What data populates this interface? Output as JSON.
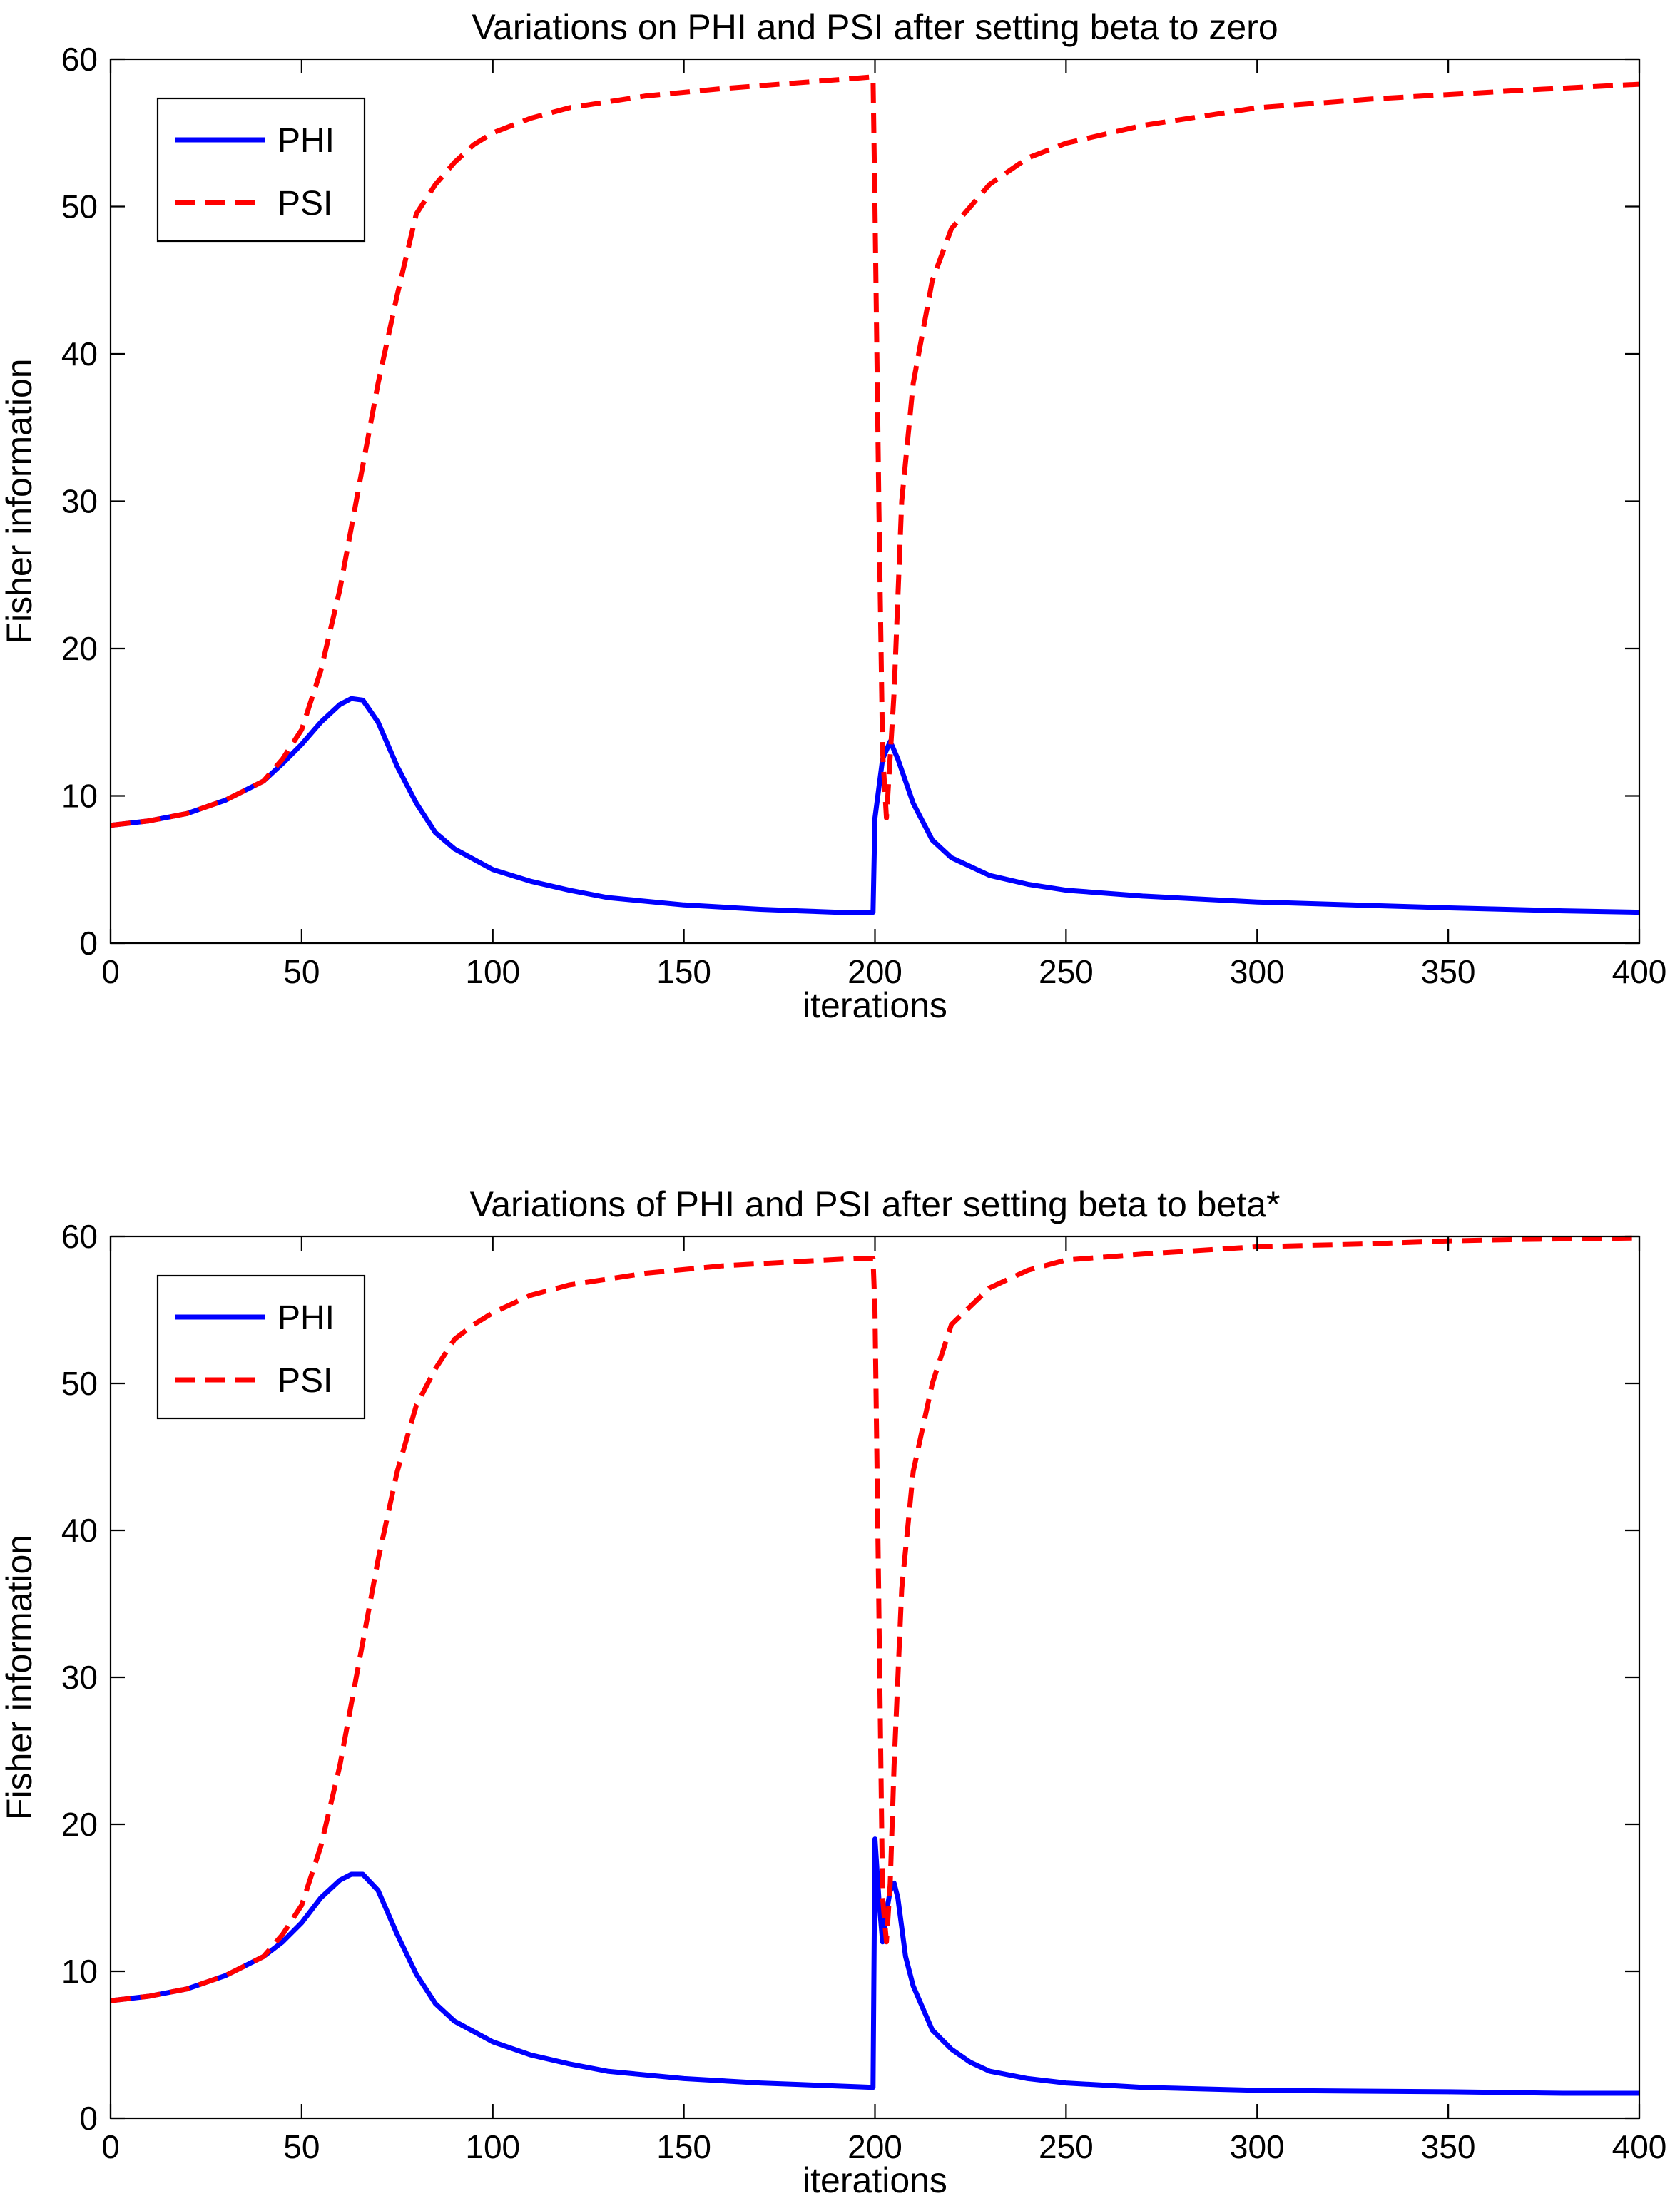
{
  "chart_data": [
    {
      "type": "line",
      "title": "Variations on PHI and PSI after setting beta to zero",
      "xlabel": "iterations",
      "ylabel": "Fisher information",
      "xlim": [
        0,
        400
      ],
      "ylim": [
        0,
        60
      ],
      "xticks": [
        0,
        50,
        100,
        150,
        200,
        250,
        300,
        350,
        400
      ],
      "yticks": [
        0,
        10,
        20,
        30,
        40,
        50,
        60
      ],
      "grid": false,
      "legend_position": "top-left",
      "series": [
        {
          "name": "PHI",
          "color": "#0000ff",
          "style": "solid",
          "x": [
            0,
            10,
            20,
            30,
            40,
            45,
            50,
            55,
            60,
            63,
            66,
            70,
            75,
            80,
            85,
            90,
            100,
            110,
            120,
            130,
            150,
            170,
            180,
            190,
            199.5,
            200,
            202,
            204,
            206,
            210,
            215,
            220,
            230,
            240,
            250,
            270,
            300,
            350,
            380,
            400
          ],
          "y": [
            8,
            8.3,
            8.8,
            9.7,
            11,
            12.2,
            13.5,
            15,
            16.2,
            16.6,
            16.5,
            15,
            12,
            9.5,
            7.5,
            6.4,
            5,
            4.2,
            3.6,
            3.1,
            2.6,
            2.3,
            2.2,
            2.1,
            2.1,
            8.5,
            12.5,
            13.7,
            12.5,
            9.5,
            7,
            5.8,
            4.6,
            4,
            3.6,
            3.2,
            2.8,
            2.4,
            2.2,
            2.1
          ]
        },
        {
          "name": "PSI",
          "color": "#ff0000",
          "style": "dashed",
          "x": [
            0,
            10,
            20,
            30,
            40,
            45,
            50,
            55,
            60,
            65,
            70,
            75,
            80,
            85,
            90,
            95,
            100,
            110,
            120,
            140,
            160,
            180,
            195,
            199.5,
            200,
            201,
            202,
            203,
            205,
            207,
            210,
            215,
            220,
            230,
            240,
            250,
            270,
            300,
            330,
            350,
            370,
            400
          ],
          "y": [
            8,
            8.3,
            8.8,
            9.7,
            11,
            12.5,
            14.5,
            18.5,
            24,
            31,
            38,
            44,
            49.5,
            51.5,
            53,
            54.2,
            55,
            56,
            56.7,
            57.5,
            58,
            58.4,
            58.7,
            58.8,
            50,
            30,
            13,
            8.5,
            17,
            30,
            38,
            45,
            48.5,
            51.5,
            53.3,
            54.3,
            55.5,
            56.7,
            57.3,
            57.6,
            57.9,
            58.3
          ]
        }
      ]
    },
    {
      "type": "line",
      "title": "Variations of PHI and PSI after setting beta to beta*",
      "xlabel": "iterations",
      "ylabel": "Fisher information",
      "xlim": [
        0,
        400
      ],
      "ylim": [
        0,
        60
      ],
      "xticks": [
        0,
        50,
        100,
        150,
        200,
        250,
        300,
        350,
        400
      ],
      "yticks": [
        0,
        10,
        20,
        30,
        40,
        50,
        60
      ],
      "grid": false,
      "legend_position": "top-left",
      "series": [
        {
          "name": "PHI",
          "color": "#0000ff",
          "style": "solid",
          "x": [
            0,
            10,
            20,
            30,
            40,
            45,
            50,
            55,
            60,
            63,
            66,
            70,
            75,
            80,
            85,
            90,
            100,
            110,
            120,
            130,
            150,
            170,
            180,
            190,
            199.5,
            200,
            201,
            202,
            203,
            204,
            205,
            206,
            208,
            210,
            215,
            220,
            225,
            230,
            240,
            250,
            270,
            300,
            350,
            380,
            400
          ],
          "y": [
            8,
            8.3,
            8.8,
            9.7,
            11,
            12,
            13.3,
            15,
            16.2,
            16.6,
            16.6,
            15.5,
            12.5,
            9.8,
            7.8,
            6.6,
            5.2,
            4.3,
            3.7,
            3.2,
            2.7,
            2.4,
            2.3,
            2.2,
            2.1,
            19,
            15,
            12,
            14,
            15.5,
            16,
            15,
            11,
            9,
            6,
            4.7,
            3.8,
            3.2,
            2.7,
            2.4,
            2.1,
            1.9,
            1.8,
            1.7,
            1.7
          ]
        },
        {
          "name": "PSI",
          "color": "#ff0000",
          "style": "dashed",
          "x": [
            0,
            10,
            20,
            30,
            40,
            45,
            50,
            55,
            60,
            65,
            70,
            75,
            80,
            85,
            90,
            95,
            100,
            110,
            120,
            140,
            160,
            180,
            195,
            199.5,
            200,
            201,
            202,
            203,
            204,
            205,
            207,
            210,
            215,
            220,
            230,
            240,
            250,
            270,
            300,
            330,
            350,
            370,
            400
          ],
          "y": [
            8,
            8.3,
            8.8,
            9.7,
            11,
            12.5,
            14.5,
            18.5,
            24,
            31,
            38,
            44,
            48.5,
            51,
            53,
            54,
            54.8,
            56,
            56.7,
            57.5,
            58,
            58.3,
            58.5,
            58.5,
            55,
            35,
            15,
            12,
            16,
            24,
            36,
            44,
            50,
            54,
            56.5,
            57.7,
            58.4,
            58.8,
            59.3,
            59.5,
            59.7,
            59.8,
            59.9
          ]
        }
      ]
    }
  ]
}
